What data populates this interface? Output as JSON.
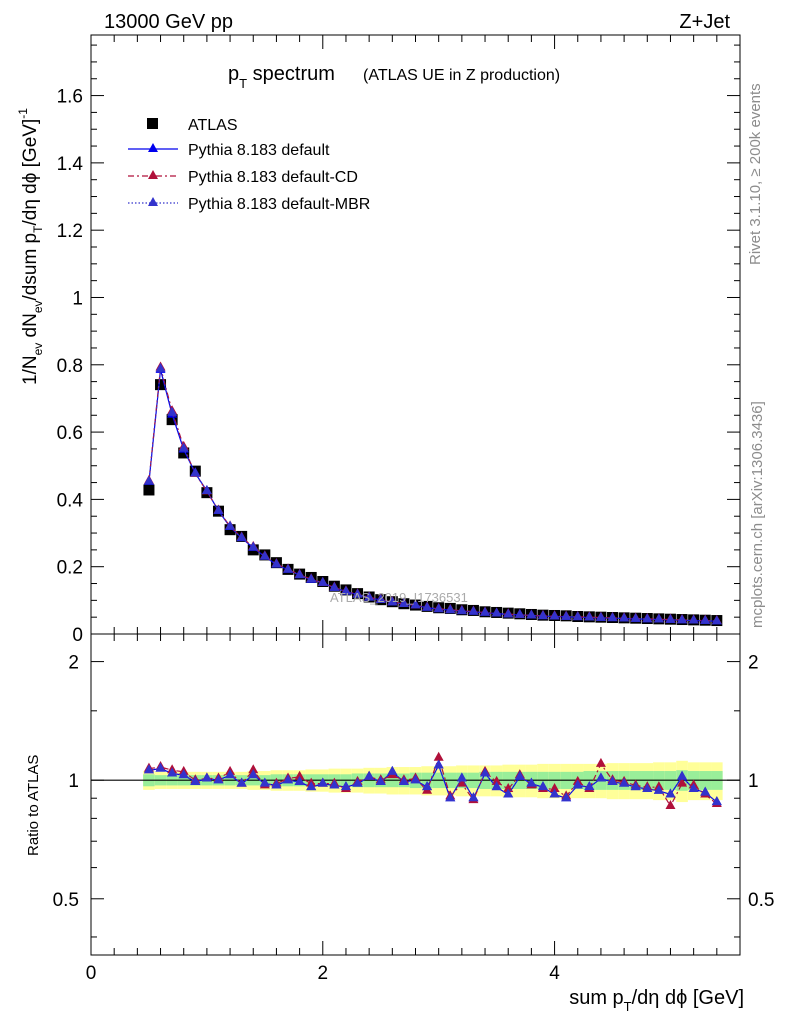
{
  "header": {
    "energy_label": "13000 GeV pp",
    "process_label": "Z+Jet"
  },
  "side_labels": {
    "rivet": "Rivet 3.1.10, ≥ 200k events",
    "mcplots": "mcplots.cern.ch [arXiv:1306.3436]"
  },
  "watermark": "ATLAS_2019_I1736531",
  "chart_data": [
    {
      "type": "scatter",
      "panel": "main",
      "title": "p_T spectrum",
      "title_main": "p",
      "title_sub": "T",
      "title_rest": " spectrum",
      "subtitle": "(ATLAS UE in Z production)",
      "ylabel": "1/N_ev dN_ev/dsum p_T/dη dϕ [GeV]^-1",
      "xlim": [
        0,
        5.6
      ],
      "ylim": [
        0,
        1.78
      ],
      "yticks": [
        0,
        0.2,
        0.4,
        0.6,
        0.8,
        1,
        1.2,
        1.4,
        1.6
      ],
      "ytick_labels": [
        "0",
        "0.2",
        "0.4",
        "0.6",
        "0.8",
        "1",
        "1.2",
        "1.4",
        "1.6"
      ],
      "x": [
        0.5,
        0.6,
        0.7,
        0.8,
        0.9,
        1.0,
        1.1,
        1.2,
        1.3,
        1.4,
        1.5,
        1.6,
        1.7,
        1.8,
        1.9,
        2.0,
        2.1,
        2.2,
        2.3,
        2.4,
        2.5,
        2.6,
        2.7,
        2.8,
        2.9,
        3.0,
        3.1,
        3.2,
        3.3,
        3.4,
        3.5,
        3.6,
        3.7,
        3.8,
        3.9,
        4.0,
        4.1,
        4.2,
        4.3,
        4.4,
        4.5,
        4.6,
        4.7,
        4.8,
        4.9,
        5.0,
        5.1,
        5.2,
        5.3,
        5.4
      ],
      "legend": [
        "ATLAS",
        "Pythia 8.183 default",
        "Pythia 8.183 default-CD",
        "Pythia 8.183 default-MBR"
      ],
      "series": [
        {
          "name": "ATLAS",
          "color": "#000000",
          "marker": "square",
          "values": [
            0.428,
            0.741,
            0.637,
            0.538,
            0.484,
            0.42,
            0.365,
            0.31,
            0.29,
            0.25,
            0.235,
            0.212,
            0.192,
            0.178,
            0.168,
            0.156,
            0.142,
            0.131,
            0.12,
            0.11,
            0.102,
            0.096,
            0.09,
            0.086,
            0.082,
            0.078,
            0.076,
            0.072,
            0.07,
            0.066,
            0.064,
            0.062,
            0.06,
            0.058,
            0.056,
            0.055,
            0.054,
            0.052,
            0.051,
            0.05,
            0.049,
            0.048,
            0.047,
            0.046,
            0.045,
            0.044,
            0.043,
            0.042,
            0.041,
            0.04
          ]
        },
        {
          "name": "Pythia 8.183 default",
          "color": "#0000ee",
          "marker": "triangle",
          "values": [
            0.452,
            0.785,
            0.652,
            0.548,
            0.478,
            0.425,
            0.366,
            0.318,
            0.285,
            0.256,
            0.23,
            0.206,
            0.191,
            0.175,
            0.161,
            0.152,
            0.137,
            0.126,
            0.117,
            0.108,
            0.101,
            0.094,
            0.089,
            0.085,
            0.078,
            0.074,
            0.071,
            0.068,
            0.066,
            0.063,
            0.061,
            0.058,
            0.057,
            0.055,
            0.053,
            0.052,
            0.051,
            0.05,
            0.049,
            0.048,
            0.047,
            0.046,
            0.045,
            0.044,
            0.043,
            0.042,
            0.041,
            0.04,
            0.039,
            0.038
          ]
        },
        {
          "name": "Pythia 8.183 default-CD",
          "color": "#b0103a",
          "marker": "triangle",
          "values": [
            0.455,
            0.792,
            0.662,
            0.556,
            0.476,
            0.424,
            0.367,
            0.32,
            0.287,
            0.259,
            0.231,
            0.208,
            0.192,
            0.176,
            0.163,
            0.152,
            0.138,
            0.127,
            0.118,
            0.109,
            0.102,
            0.095,
            0.09,
            0.085,
            0.079,
            0.075,
            0.072,
            0.069,
            0.067,
            0.064,
            0.061,
            0.059,
            0.057,
            0.055,
            0.054,
            0.053,
            0.052,
            0.051,
            0.05,
            0.049,
            0.048,
            0.047,
            0.046,
            0.045,
            0.044,
            0.043,
            0.042,
            0.041,
            0.04,
            0.039
          ]
        },
        {
          "name": "Pythia 8.183 default-MBR",
          "color": "#3333cc",
          "marker": "triangle",
          "values": [
            0.453,
            0.788,
            0.657,
            0.551,
            0.477,
            0.425,
            0.366,
            0.319,
            0.286,
            0.257,
            0.23,
            0.207,
            0.191,
            0.175,
            0.162,
            0.152,
            0.137,
            0.126,
            0.117,
            0.108,
            0.101,
            0.094,
            0.089,
            0.085,
            0.078,
            0.074,
            0.071,
            0.068,
            0.066,
            0.063,
            0.061,
            0.058,
            0.057,
            0.055,
            0.053,
            0.052,
            0.051,
            0.05,
            0.049,
            0.048,
            0.047,
            0.046,
            0.045,
            0.044,
            0.043,
            0.042,
            0.041,
            0.04,
            0.039,
            0.038
          ]
        }
      ]
    },
    {
      "type": "scatter",
      "panel": "ratio",
      "ylabel": "Ratio to ATLAS",
      "xlabel": "sum p_T/dη dϕ [GeV]",
      "xlabel_parts": [
        "sum p",
        "T",
        "/dη dϕ [GeV]"
      ],
      "ylim": [
        0.36,
        2.35
      ],
      "yscale": "log",
      "yticks": [
        0.5,
        1,
        2
      ],
      "ytick_labels": [
        "0.5",
        "1",
        "2"
      ],
      "xticks": [
        0,
        2,
        4
      ],
      "xtick_labels": [
        "0",
        "2",
        "4"
      ],
      "x": [
        0.5,
        0.6,
        0.7,
        0.8,
        0.9,
        1.0,
        1.1,
        1.2,
        1.3,
        1.4,
        1.5,
        1.6,
        1.7,
        1.8,
        1.9,
        2.0,
        2.1,
        2.2,
        2.3,
        2.4,
        2.5,
        2.6,
        2.7,
        2.8,
        2.9,
        3.0,
        3.1,
        3.2,
        3.3,
        3.4,
        3.5,
        3.6,
        3.7,
        3.8,
        3.9,
        4.0,
        4.1,
        4.2,
        4.3,
        4.4,
        4.5,
        4.6,
        4.7,
        4.8,
        4.9,
        5.0,
        5.1,
        5.2,
        5.3,
        5.4
      ],
      "band_green": [
        0.035,
        0.03,
        0.03,
        0.03,
        0.03,
        0.03,
        0.03,
        0.03,
        0.03,
        0.03,
        0.03,
        0.035,
        0.035,
        0.035,
        0.035,
        0.035,
        0.035,
        0.035,
        0.04,
        0.04,
        0.04,
        0.04,
        0.04,
        0.045,
        0.045,
        0.045,
        0.045,
        0.045,
        0.045,
        0.05,
        0.05,
        0.05,
        0.05,
        0.05,
        0.05,
        0.05,
        0.05,
        0.05,
        0.055,
        0.055,
        0.055,
        0.055,
        0.055,
        0.055,
        0.055,
        0.055,
        0.06,
        0.055,
        0.055,
        0.055
      ],
      "band_yellow": [
        0.055,
        0.05,
        0.05,
        0.05,
        0.05,
        0.05,
        0.05,
        0.05,
        0.05,
        0.055,
        0.055,
        0.06,
        0.06,
        0.06,
        0.065,
        0.065,
        0.07,
        0.07,
        0.07,
        0.075,
        0.075,
        0.08,
        0.08,
        0.08,
        0.085,
        0.085,
        0.085,
        0.09,
        0.09,
        0.09,
        0.09,
        0.095,
        0.095,
        0.095,
        0.1,
        0.1,
        0.1,
        0.1,
        0.1,
        0.1,
        0.105,
        0.105,
        0.105,
        0.105,
        0.11,
        0.11,
        0.12,
        0.11,
        0.11,
        0.11
      ],
      "series": [
        {
          "name": "Pythia 8.183 default",
          "color": "#0000ee",
          "values": [
            1.06,
            1.07,
            1.04,
            1.03,
            0.99,
            1.01,
            1.0,
            1.03,
            0.98,
            1.03,
            0.98,
            0.97,
            1.0,
            0.99,
            0.96,
            0.98,
            0.97,
            0.96,
            0.98,
            1.02,
            0.99,
            1.05,
            0.99,
            1.0,
            0.96,
            1.09,
            0.9,
            1.01,
            0.9,
            1.04,
            0.96,
            0.92,
            1.02,
            0.98,
            0.96,
            0.92,
            0.9,
            0.97,
            0.96,
            1.01,
            0.99,
            0.98,
            0.96,
            0.95,
            0.94,
            0.92,
            1.02,
            0.95,
            0.93,
            0.88
          ]
        },
        {
          "name": "Pythia 8.183 default-CD",
          "color": "#b0103a",
          "values": [
            1.07,
            1.08,
            1.06,
            1.05,
            1.0,
            1.01,
            1.01,
            1.05,
            0.98,
            1.06,
            0.97,
            0.98,
            1.01,
            1.02,
            0.98,
            0.98,
            0.98,
            0.95,
            0.99,
            1.02,
            1.0,
            1.03,
            1.0,
            1.01,
            0.94,
            1.14,
            0.91,
            0.98,
            0.89,
            1.05,
            0.99,
            0.95,
            1.03,
            0.97,
            0.95,
            0.95,
            0.91,
            0.99,
            0.95,
            1.1,
            1.0,
            0.99,
            0.97,
            0.96,
            0.96,
            0.86,
            0.98,
            0.97,
            0.92,
            0.87
          ]
        },
        {
          "name": "Pythia 8.183 default-MBR",
          "color": "#3333cc",
          "values": [
            1.06,
            1.07,
            1.04,
            1.03,
            0.99,
            1.01,
            1.0,
            1.03,
            0.98,
            1.03,
            0.98,
            0.97,
            1.0,
            0.99,
            0.96,
            0.98,
            0.97,
            0.96,
            0.98,
            1.02,
            0.99,
            1.05,
            0.99,
            1.0,
            0.96,
            1.09,
            0.9,
            1.01,
            0.9,
            1.04,
            0.96,
            0.92,
            1.02,
            0.98,
            0.96,
            0.92,
            0.9,
            0.97,
            0.96,
            1.01,
            0.99,
            0.98,
            0.96,
            0.95,
            0.94,
            0.92,
            1.02,
            0.95,
            0.93,
            0.88
          ]
        }
      ]
    }
  ]
}
